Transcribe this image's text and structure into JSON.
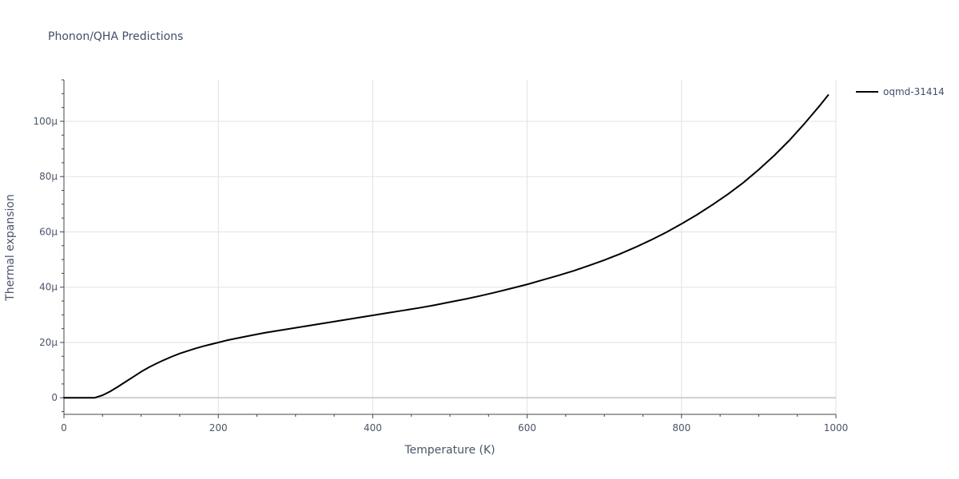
{
  "chart_data": {
    "type": "line",
    "title": "Phonon/QHA Predictions",
    "xlabel": "Temperature (K)",
    "ylabel": "Thermal expansion",
    "xlim": [
      0,
      1000
    ],
    "ylim": [
      -6,
      115
    ],
    "x_ticks": [
      0,
      200,
      400,
      600,
      800,
      1000
    ],
    "x_tick_labels": [
      "0",
      "200",
      "400",
      "600",
      "800",
      "1000"
    ],
    "y_ticks": [
      0,
      20,
      40,
      60,
      80,
      100
    ],
    "y_tick_labels": [
      "0",
      "20μ",
      "40μ",
      "60μ",
      "80μ",
      "100μ"
    ],
    "grid": true,
    "legend_position": "top-right",
    "series": [
      {
        "name": "oqmd-31414",
        "color": "#000000",
        "x": [
          0,
          10,
          20,
          30,
          40,
          50,
          60,
          70,
          80,
          90,
          100,
          110,
          120,
          130,
          140,
          150,
          160,
          170,
          180,
          190,
          200,
          210,
          220,
          240,
          260,
          280,
          300,
          320,
          340,
          360,
          380,
          400,
          420,
          440,
          460,
          480,
          500,
          520,
          540,
          560,
          580,
          600,
          620,
          640,
          660,
          680,
          700,
          720,
          740,
          760,
          780,
          800,
          820,
          840,
          860,
          880,
          900,
          920,
          940,
          960,
          980,
          990
        ],
        "y": [
          0,
          0,
          0,
          0,
          0,
          0.9,
          2.3,
          4.0,
          5.8,
          7.6,
          9.4,
          11.0,
          12.4,
          13.7,
          14.9,
          16.0,
          16.9,
          17.8,
          18.6,
          19.3,
          20.0,
          20.7,
          21.3,
          22.4,
          23.5,
          24.4,
          25.3,
          26.2,
          27.1,
          28.0,
          28.9,
          29.8,
          30.7,
          31.6,
          32.5,
          33.5,
          34.6,
          35.7,
          36.9,
          38.2,
          39.6,
          41.0,
          42.6,
          44.2,
          45.9,
          47.8,
          49.8,
          52.0,
          54.4,
          57.0,
          59.8,
          62.9,
          66.2,
          69.8,
          73.6,
          77.8,
          82.5,
          87.6,
          93.2,
          99.4,
          106.0,
          109.5
        ]
      }
    ]
  }
}
